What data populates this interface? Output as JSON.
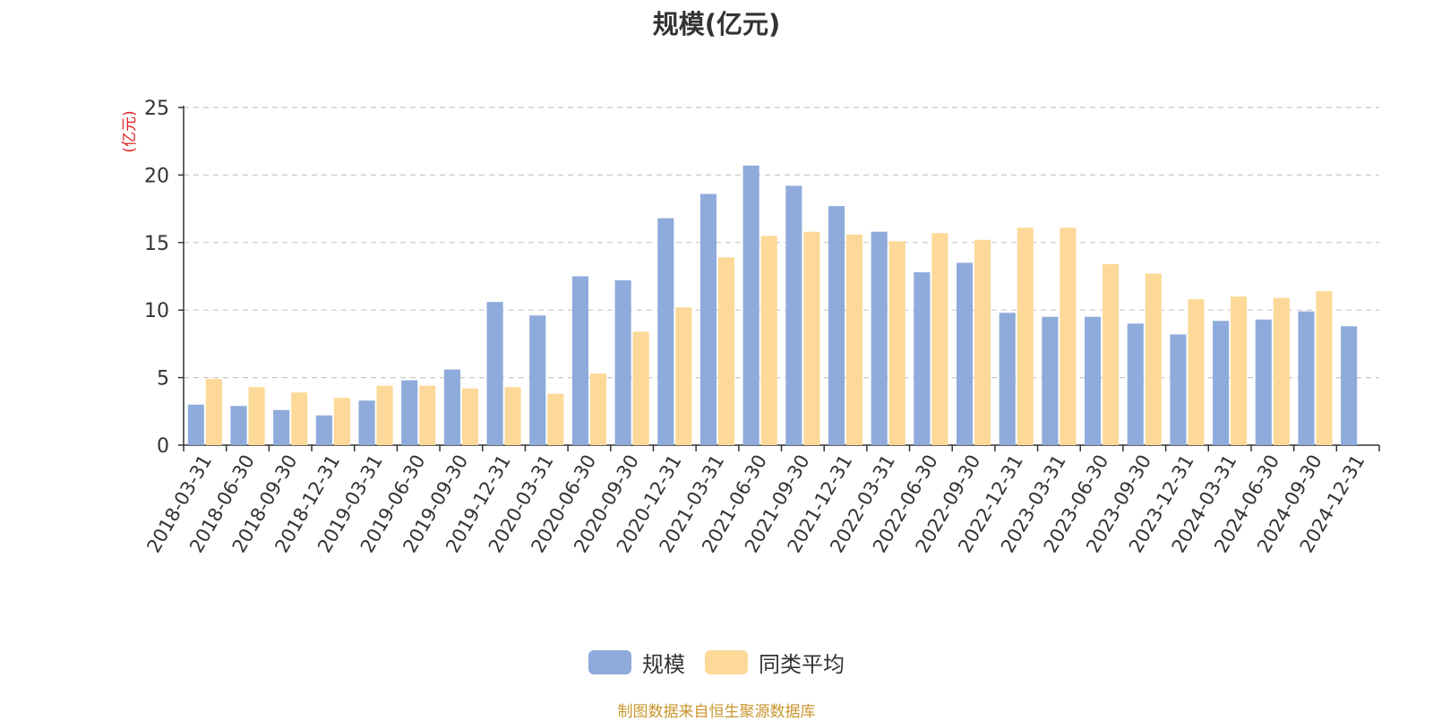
{
  "footer": {
    "source": "制图数据来自恒生聚源数据库"
  },
  "chart_data": {
    "type": "bar",
    "title": "规模(亿元)",
    "ylabel": "(亿元)",
    "xlabel": "",
    "ylim": [
      0,
      25
    ],
    "yticks": [
      0,
      5,
      10,
      15,
      20,
      25
    ],
    "grid": true,
    "legend_position": "bottom",
    "categories": [
      "2018-03-31",
      "2018-06-30",
      "2018-09-30",
      "2018-12-31",
      "2019-03-31",
      "2019-06-30",
      "2019-09-30",
      "2019-12-31",
      "2020-03-31",
      "2020-06-30",
      "2020-09-30",
      "2020-12-31",
      "2021-03-31",
      "2021-06-30",
      "2021-09-30",
      "2021-12-31",
      "2022-03-31",
      "2022-06-30",
      "2022-09-30",
      "2022-12-31",
      "2023-03-31",
      "2023-06-30",
      "2023-09-30",
      "2023-12-31",
      "2024-03-31",
      "2024-06-30",
      "2024-09-30",
      "2024-12-31"
    ],
    "series": [
      {
        "name": "规模",
        "color": "#8eabdb",
        "values": [
          3.0,
          2.9,
          2.6,
          2.2,
          3.3,
          4.8,
          5.6,
          10.6,
          9.6,
          12.5,
          12.2,
          16.8,
          18.6,
          20.7,
          19.2,
          17.7,
          15.8,
          12.8,
          13.5,
          9.8,
          9.5,
          9.5,
          9.0,
          8.2,
          9.2,
          9.3,
          9.9,
          8.8
        ]
      },
      {
        "name": "同类平均",
        "color": "#fdd999",
        "values": [
          4.9,
          4.3,
          3.9,
          3.5,
          4.4,
          4.4,
          4.2,
          4.3,
          3.8,
          5.3,
          8.4,
          10.2,
          13.9,
          15.5,
          15.8,
          15.6,
          15.1,
          15.7,
          15.2,
          16.1,
          16.1,
          13.4,
          12.7,
          10.8,
          11.0,
          10.9,
          11.4,
          null
        ]
      }
    ]
  }
}
